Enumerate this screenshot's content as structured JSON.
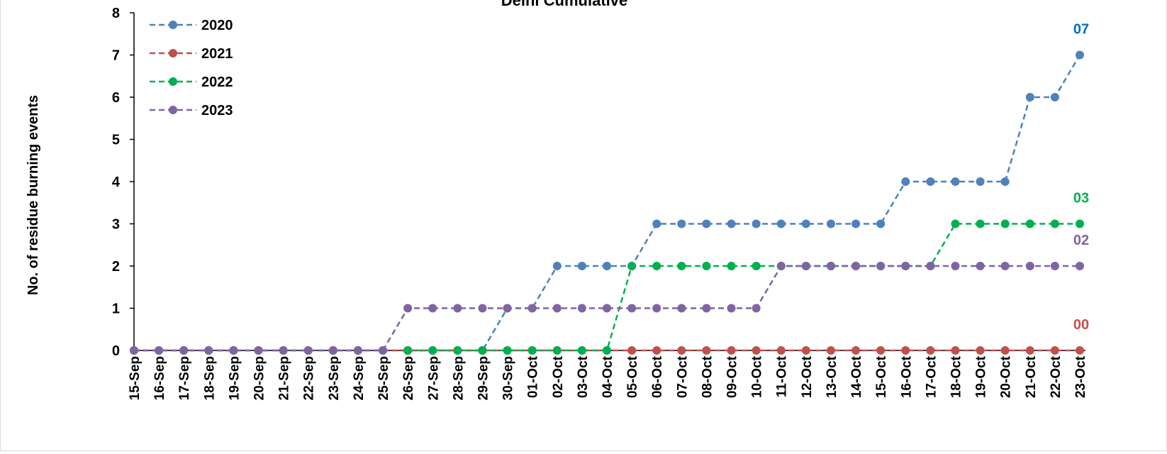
{
  "chart_data": {
    "type": "line",
    "title": "Delhi Cumulative",
    "ylabel": "No. of residue burning events",
    "xlabel": "",
    "ylim": [
      0,
      8
    ],
    "yticks": [
      0,
      1,
      2,
      3,
      4,
      5,
      6,
      7,
      8
    ],
    "grid": false,
    "legend_position": "top-left",
    "categories": [
      "15-Sep",
      "16-Sep",
      "17-Sep",
      "18-Sep",
      "19-Sep",
      "20-Sep",
      "21-Sep",
      "22-Sep",
      "23-Sep",
      "24-Sep",
      "25-Sep",
      "26-Sep",
      "27-Sep",
      "28-Sep",
      "29-Sep",
      "30-Sep",
      "01-Oct",
      "02-Oct",
      "03-Oct",
      "04-Oct",
      "05-Oct",
      "06-Oct",
      "07-Oct",
      "08-Oct",
      "09-Oct",
      "10-Oct",
      "11-Oct",
      "12-Oct",
      "13-Oct",
      "14-Oct",
      "15-Oct",
      "16-Oct",
      "17-Oct",
      "18-Oct",
      "19-Oct",
      "20-Oct",
      "21-Oct",
      "22-Oct",
      "23-Oct"
    ],
    "series": [
      {
        "name": "2020",
        "color": "#4f81bd",
        "end_label": "07",
        "end_label_color": "#0070c0",
        "values": [
          0,
          0,
          0,
          0,
          0,
          0,
          0,
          0,
          0,
          0,
          0,
          0,
          0,
          0,
          0,
          1,
          1,
          2,
          2,
          2,
          2,
          3,
          3,
          3,
          3,
          3,
          3,
          3,
          3,
          3,
          3,
          4,
          4,
          4,
          4,
          4,
          6,
          6,
          7
        ]
      },
      {
        "name": "2021",
        "color": "#c0504d",
        "end_label": "00",
        "end_label_color": "#c0504d",
        "values": [
          0,
          0,
          0,
          0,
          0,
          0,
          0,
          0,
          0,
          0,
          0,
          0,
          0,
          0,
          0,
          0,
          0,
          0,
          0,
          0,
          0,
          0,
          0,
          0,
          0,
          0,
          0,
          0,
          0,
          0,
          0,
          0,
          0,
          0,
          0,
          0,
          0,
          0,
          0
        ]
      },
      {
        "name": "2022",
        "color": "#00b050",
        "end_label": "03",
        "end_label_color": "#00b050",
        "values": [
          null,
          null,
          null,
          null,
          null,
          null,
          null,
          null,
          null,
          null,
          null,
          0,
          0,
          0,
          0,
          0,
          0,
          0,
          0,
          0,
          2,
          2,
          2,
          2,
          2,
          2,
          2,
          2,
          2,
          2,
          2,
          2,
          2,
          3,
          3,
          3,
          3,
          3,
          3
        ]
      },
      {
        "name": "2023",
        "color": "#8064a2",
        "end_label": "02",
        "end_label_color": "#8064a2",
        "values": [
          0,
          0,
          0,
          0,
          0,
          0,
          0,
          0,
          0,
          0,
          0,
          1,
          1,
          1,
          1,
          1,
          1,
          1,
          1,
          1,
          1,
          1,
          1,
          1,
          1,
          1,
          2,
          2,
          2,
          2,
          2,
          2,
          2,
          2,
          2,
          2,
          2,
          2,
          2
        ]
      }
    ]
  }
}
